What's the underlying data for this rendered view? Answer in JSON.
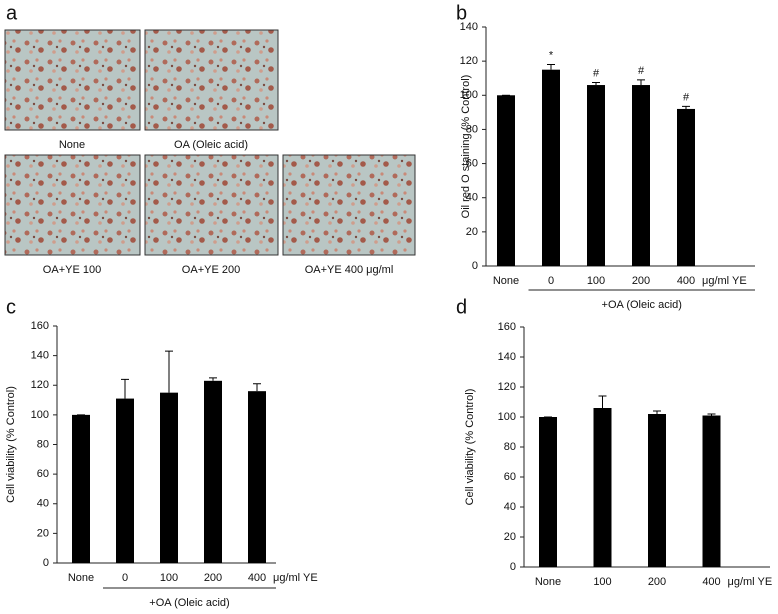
{
  "figure_a": {
    "letter": "a",
    "labels": [
      "None",
      "OA (Oleic acid)",
      "OA+YE 100",
      "OA+YE 200",
      "OA+YE 400 μg/ml"
    ]
  },
  "chart_data": [
    {
      "type": "bar",
      "letter": "b",
      "ylabel": "Oil red O staining (% Control)",
      "categories": [
        "None",
        "0",
        "100",
        "200",
        "400"
      ],
      "unit_label": "μg/ml YE",
      "group_label": "+OA (Oleic acid)",
      "values": [
        100,
        115,
        106,
        106,
        92
      ],
      "errors": [
        0,
        3,
        1.5,
        3,
        1.5
      ],
      "markers": [
        null,
        "*",
        "#",
        "#",
        "#"
      ],
      "color": "#000000",
      "ylim": [
        0,
        140
      ],
      "yticks": [
        0,
        20,
        40,
        60,
        80,
        100,
        120,
        140
      ]
    },
    {
      "type": "bar",
      "letter": "c",
      "ylabel": "Cell viability (% Control)",
      "categories": [
        "None",
        "0",
        "100",
        "200",
        "400"
      ],
      "unit_label": "μg/ml YE",
      "group_label": "+OA (Oleic acid)",
      "values": [
        100,
        111,
        115,
        123,
        116
      ],
      "errors": [
        0,
        13,
        28,
        2,
        5
      ],
      "color": "#000000",
      "ylim": [
        0,
        160
      ],
      "yticks": [
        0,
        20,
        40,
        60,
        80,
        100,
        120,
        140,
        160
      ]
    },
    {
      "type": "bar",
      "letter": "d",
      "ylabel": "Cell viability (% Control)",
      "categories": [
        "None",
        "100",
        "200",
        "400"
      ],
      "unit_label": "μg/ml YE",
      "values": [
        100,
        106,
        102,
        101
      ],
      "errors": [
        0,
        8,
        2,
        1
      ],
      "color": "#000000",
      "ylim": [
        0,
        160
      ],
      "yticks": [
        0,
        20,
        40,
        60,
        80,
        100,
        120,
        140,
        160
      ]
    }
  ]
}
